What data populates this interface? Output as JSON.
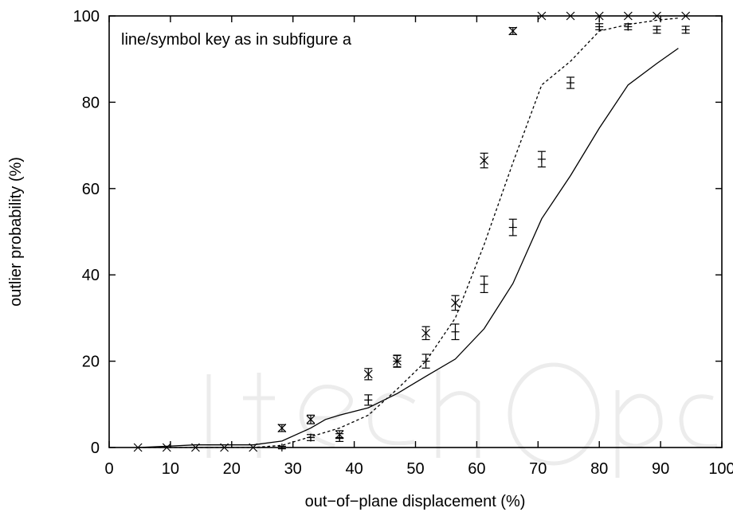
{
  "chart_data": {
    "type": "scatter",
    "xlabel": "out−of−plane displacement (%)",
    "ylabel": "outlier probability (%)",
    "annotation": "line/symbol key as in subfigure a",
    "xlim": [
      0,
      100
    ],
    "ylim": [
      0,
      100
    ],
    "xticks": [
      0,
      10,
      20,
      30,
      40,
      50,
      60,
      70,
      80,
      90,
      100
    ],
    "yticks": [
      0,
      20,
      40,
      60,
      80,
      100
    ],
    "grid": false,
    "series": [
      {
        "style": "line-solid",
        "x": [
          4.7,
          9.4,
          14.1,
          18.8,
          23.5,
          28.2,
          32.9,
          35.3,
          37.6,
          42.3,
          47.0,
          51.7,
          56.5,
          61.2,
          65.9,
          70.6,
          75.3,
          80.0,
          84.7,
          89.4,
          92.9
        ],
        "y": [
          0,
          0.3,
          0.6,
          0.6,
          0.6,
          1.5,
          4.5,
          6.5,
          7.5,
          9.2,
          12.5,
          16.5,
          20.5,
          27.5,
          38.0,
          53.0,
          63.0,
          74.0,
          84.0,
          89.0,
          92.5
        ]
      },
      {
        "style": "line-dashed",
        "x": [
          4.7,
          9.4,
          14.1,
          18.8,
          23.5,
          28.2,
          32.9,
          37.6,
          42.3,
          47.0,
          51.7,
          56.5,
          61.2,
          65.9,
          70.6,
          75.3,
          80.0,
          84.7,
          89.4,
          92.9
        ],
        "y": [
          0,
          0,
          0,
          0,
          0,
          0.5,
          2.5,
          4.5,
          7.5,
          13.5,
          20.0,
          30.0,
          47.0,
          66.0,
          84.0,
          89.5,
          96.5,
          98.0,
          99.0,
          99.5
        ]
      },
      {
        "style": "marker-x-with-errorbars",
        "x": [
          4.7,
          9.4,
          14.1,
          18.8,
          23.5,
          28.2,
          32.9,
          37.6,
          42.3,
          47.0,
          51.7,
          56.5,
          61.2,
          65.9,
          70.6,
          75.3,
          80.0,
          84.7,
          89.4,
          94.1
        ],
        "y": [
          0,
          0,
          0,
          0,
          0,
          4.5,
          6.5,
          3.0,
          17.0,
          20.0,
          26.5,
          33.5,
          66.5,
          96.5,
          100,
          100,
          100,
          100,
          100,
          100
        ],
        "err": [
          0,
          0,
          0,
          0,
          0,
          0.8,
          1.0,
          0.9,
          1.3,
          1.3,
          1.5,
          1.7,
          1.7,
          0.8,
          0,
          0,
          0,
          0,
          0,
          0
        ]
      },
      {
        "style": "marker-plus-with-errorbars",
        "x": [
          28.2,
          32.9,
          37.6,
          42.3,
          47.0,
          51.7,
          56.5,
          61.2,
          65.9,
          70.6,
          75.3,
          80.0,
          84.7,
          89.4,
          94.1
        ],
        "y": [
          0,
          2.3,
          2.3,
          11.0,
          20.0,
          20.0,
          26.8,
          37.8,
          51.0,
          66.8,
          84.5,
          97.5,
          97.5,
          96.8,
          96.8
        ],
        "err": [
          0.3,
          0.7,
          0.9,
          1.2,
          1.4,
          1.6,
          1.8,
          1.9,
          1.9,
          1.8,
          1.3,
          0.7,
          0.7,
          0.8,
          0.8
        ]
      }
    ]
  }
}
